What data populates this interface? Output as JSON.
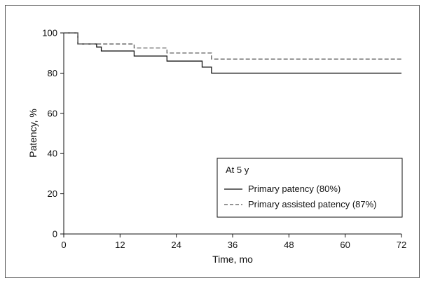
{
  "chart_data": {
    "type": "line",
    "xlabel": "Time, mo",
    "ylabel": "Patency, %",
    "xlim": [
      0,
      72
    ],
    "ylim": [
      0,
      100
    ],
    "xticks": [
      0,
      12,
      24,
      36,
      48,
      60,
      72
    ],
    "yticks": [
      0,
      20,
      40,
      60,
      80,
      100
    ],
    "grid": false,
    "legend": {
      "title": "At 5 y",
      "placement": "lower-right"
    },
    "series": [
      {
        "name": "Primary patency (80%)",
        "style": "solid",
        "color": "#111111",
        "step": true,
        "points": [
          [
            0,
            100
          ],
          [
            3,
            100
          ],
          [
            3,
            94.5
          ],
          [
            7,
            94.5
          ],
          [
            7,
            93
          ],
          [
            8,
            93
          ],
          [
            8,
            91
          ],
          [
            15,
            91
          ],
          [
            15,
            88.5
          ],
          [
            22,
            88.5
          ],
          [
            22,
            86
          ],
          [
            29.5,
            86
          ],
          [
            29.5,
            83
          ],
          [
            31.5,
            83
          ],
          [
            31.5,
            80
          ],
          [
            72,
            80
          ]
        ]
      },
      {
        "name": "Primary assisted patency (87%)",
        "style": "dashed",
        "color": "#555555",
        "step": true,
        "points": [
          [
            0,
            100
          ],
          [
            3,
            100
          ],
          [
            3,
            94.5
          ],
          [
            7,
            94.5
          ],
          [
            15,
            94.5
          ],
          [
            15,
            92.5
          ],
          [
            22,
            92.5
          ],
          [
            22,
            90
          ],
          [
            31.5,
            90
          ],
          [
            31.5,
            87
          ],
          [
            72,
            87
          ]
        ]
      }
    ]
  }
}
